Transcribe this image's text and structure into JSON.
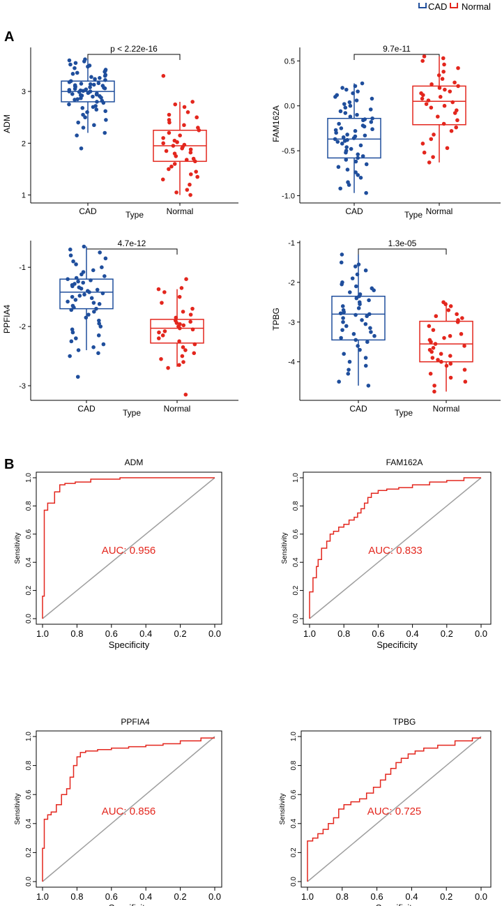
{
  "colors": {
    "cad": "#1f4e9c",
    "normal": "#e3261d",
    "diag": "#9e9e9e",
    "roc": "#e3261d"
  },
  "panel_labels": {
    "a": "A",
    "b": "B"
  },
  "legend": {
    "items": [
      "CAD",
      "Normal"
    ]
  },
  "chart_data": [
    {
      "type": "box",
      "panel": "A",
      "title": "",
      "ylabel": "ADM",
      "xlabel": "Type",
      "categories": [
        "CAD",
        "Normal"
      ],
      "ylim": [
        0.9,
        3.85
      ],
      "yticks": [
        1,
        2,
        3
      ],
      "ytick_labels": [
        "1",
        "2",
        "3"
      ],
      "significance": "p < 2.22e-16",
      "boxes": [
        {
          "name": "CAD",
          "min": 2.2,
          "q1": 2.8,
          "median": 3.0,
          "q3": 3.2,
          "max": 3.62
        },
        {
          "name": "Normal",
          "min": 1.0,
          "q1": 1.65,
          "median": 1.95,
          "q3": 2.25,
          "max": 2.8
        }
      ],
      "points": [
        [
          1.9,
          2.15,
          2.2,
          2.3,
          2.35,
          2.4,
          2.45,
          2.5,
          2.55,
          2.6,
          2.62,
          2.65,
          2.68,
          2.7,
          2.72,
          2.75,
          2.78,
          2.8,
          2.82,
          2.84,
          2.85,
          2.87,
          2.88,
          2.9,
          2.91,
          2.92,
          2.93,
          2.94,
          2.95,
          2.96,
          2.97,
          2.98,
          2.99,
          3.0,
          3.0,
          3.01,
          3.02,
          3.03,
          3.04,
          3.05,
          3.06,
          3.07,
          3.08,
          3.09,
          3.1,
          3.11,
          3.12,
          3.13,
          3.14,
          3.15,
          3.16,
          3.18,
          3.2,
          3.22,
          3.24,
          3.26,
          3.28,
          3.3,
          3.32,
          3.34,
          3.36,
          3.38,
          3.4,
          3.42,
          3.45,
          3.48,
          3.5,
          3.52,
          3.55,
          3.58,
          3.6,
          3.62
        ],
        [
          1.0,
          1.05,
          1.1,
          1.2,
          1.3,
          1.35,
          1.4,
          1.45,
          1.5,
          1.55,
          1.6,
          1.65,
          1.68,
          1.7,
          1.75,
          1.8,
          1.82,
          1.85,
          1.88,
          1.9,
          1.93,
          1.95,
          1.97,
          2.0,
          2.02,
          2.05,
          2.1,
          2.15,
          2.2,
          2.25,
          2.3,
          2.35,
          2.4,
          2.45,
          2.5,
          2.55,
          2.6,
          2.7,
          2.75,
          2.8,
          3.3
        ]
      ]
    },
    {
      "type": "box",
      "panel": "A",
      "title": "",
      "ylabel": "FAM162A",
      "xlabel": "Type",
      "categories": [
        "CAD",
        "Normal"
      ],
      "ylim": [
        -1.05,
        0.65
      ],
      "yticks": [
        -1.0,
        -0.5,
        0.0,
        0.5
      ],
      "ytick_labels": [
        "-1.0",
        "-0.5",
        "0.0",
        "0.5"
      ],
      "significance": "9.7e-11",
      "boxes": [
        {
          "name": "CAD",
          "min": -0.97,
          "q1": -0.58,
          "median": -0.37,
          "q3": -0.14,
          "max": 0.25
        },
        {
          "name": "Normal",
          "min": -0.63,
          "q1": -0.21,
          "median": 0.05,
          "q3": 0.22,
          "max": 0.55
        }
      ],
      "points": [
        [
          -0.97,
          -0.92,
          -0.88,
          -0.85,
          -0.8,
          -0.77,
          -0.74,
          -0.71,
          -0.68,
          -0.65,
          -0.62,
          -0.6,
          -0.58,
          -0.56,
          -0.54,
          -0.52,
          -0.5,
          -0.48,
          -0.46,
          -0.44,
          -0.42,
          -0.4,
          -0.39,
          -0.38,
          -0.37,
          -0.36,
          -0.35,
          -0.34,
          -0.33,
          -0.32,
          -0.3,
          -0.28,
          -0.27,
          -0.26,
          -0.25,
          -0.23,
          -0.22,
          -0.2,
          -0.18,
          -0.16,
          -0.15,
          -0.14,
          -0.12,
          -0.1,
          -0.08,
          -0.06,
          -0.04,
          -0.02,
          0.0,
          0.02,
          0.04,
          0.06,
          0.08,
          0.1,
          0.12,
          0.14,
          0.16,
          0.18,
          0.2,
          0.22,
          0.25
        ],
        [
          -0.63,
          -0.57,
          -0.52,
          -0.47,
          -0.42,
          -0.37,
          -0.32,
          -0.28,
          -0.24,
          -0.2,
          -0.16,
          -0.12,
          -0.08,
          -0.05,
          -0.02,
          0.0,
          0.02,
          0.04,
          0.06,
          0.08,
          0.1,
          0.12,
          0.14,
          0.16,
          0.18,
          0.2,
          0.22,
          0.24,
          0.26,
          0.3,
          0.34,
          0.38,
          0.42,
          0.46,
          0.5,
          0.53,
          0.55
        ]
      ]
    },
    {
      "type": "box",
      "panel": "A",
      "title": "",
      "ylabel": "PPFIA4",
      "xlabel": "Type",
      "categories": [
        "CAD",
        "Normal"
      ],
      "ylim": [
        -3.2,
        -0.55
      ],
      "yticks": [
        -3,
        -2,
        -1
      ],
      "ytick_labels": [
        "-3",
        "-2",
        "-1"
      ],
      "significance": "4.7e-12",
      "boxes": [
        {
          "name": "CAD",
          "min": -2.4,
          "q1": -1.7,
          "median": -1.42,
          "q3": -1.2,
          "max": -0.65
        },
        {
          "name": "Normal",
          "min": -2.68,
          "q1": -2.28,
          "median": -2.03,
          "q3": -1.88,
          "max": -1.37
        }
      ],
      "points": [
        [
          -2.85,
          -2.5,
          -2.45,
          -2.4,
          -2.35,
          -2.3,
          -2.25,
          -2.2,
          -2.15,
          -2.1,
          -2.05,
          -2.0,
          -1.95,
          -1.9,
          -1.85,
          -1.8,
          -1.75,
          -1.72,
          -1.7,
          -1.68,
          -1.65,
          -1.62,
          -1.6,
          -1.58,
          -1.55,
          -1.52,
          -1.5,
          -1.48,
          -1.46,
          -1.44,
          -1.42,
          -1.4,
          -1.38,
          -1.36,
          -1.34,
          -1.32,
          -1.3,
          -1.28,
          -1.26,
          -1.24,
          -1.22,
          -1.2,
          -1.18,
          -1.15,
          -1.12,
          -1.08,
          -1.05,
          -1.0,
          -0.95,
          -0.9,
          -0.85,
          -0.8,
          -0.75,
          -0.7,
          -0.65
        ],
        [
          -3.15,
          -2.7,
          -2.65,
          -2.6,
          -2.55,
          -2.5,
          -2.45,
          -2.4,
          -2.35,
          -2.3,
          -2.25,
          -2.2,
          -2.15,
          -2.1,
          -2.08,
          -2.05,
          -2.03,
          -2.0,
          -1.98,
          -1.96,
          -1.94,
          -1.92,
          -1.9,
          -1.85,
          -1.8,
          -1.75,
          -1.7,
          -1.6,
          -1.5,
          -1.42,
          -1.37,
          -1.35,
          -1.2
        ]
      ]
    },
    {
      "type": "box",
      "panel": "A",
      "title": "",
      "ylabel": "TPBG",
      "xlabel": "Type",
      "categories": [
        "CAD",
        "Normal"
      ],
      "ylim": [
        -4.9,
        -0.95
      ],
      "yticks": [
        -4,
        -3,
        -2,
        -1
      ],
      "ytick_labels": [
        "-4",
        "-3",
        "-2",
        "-1"
      ],
      "significance": "1.3e-05",
      "boxes": [
        {
          "name": "CAD",
          "min": -4.6,
          "q1": -3.45,
          "median": -2.8,
          "q3": -2.35,
          "max": -1.3
        },
        {
          "name": "Normal",
          "min": -4.75,
          "q1": -4.0,
          "median": -3.55,
          "q3": -2.98,
          "max": -2.5
        }
      ],
      "points": [
        [
          -4.6,
          -4.5,
          -4.3,
          -4.2,
          -4.1,
          -4.0,
          -3.9,
          -3.8,
          -3.7,
          -3.6,
          -3.5,
          -3.45,
          -3.4,
          -3.35,
          -3.3,
          -3.25,
          -3.2,
          -3.15,
          -3.1,
          -3.05,
          -3.0,
          -2.95,
          -2.9,
          -2.85,
          -2.82,
          -2.8,
          -2.78,
          -2.75,
          -2.7,
          -2.65,
          -2.6,
          -2.55,
          -2.5,
          -2.45,
          -2.4,
          -2.35,
          -2.3,
          -2.25,
          -2.2,
          -2.15,
          -2.1,
          -2.05,
          -2.0,
          -1.9,
          -1.8,
          -1.7,
          -1.6,
          -1.55,
          -1.5,
          -1.3
        ],
        [
          -4.75,
          -4.6,
          -4.5,
          -4.4,
          -4.3,
          -4.2,
          -4.1,
          -4.05,
          -4.0,
          -3.95,
          -3.9,
          -3.85,
          -3.8,
          -3.75,
          -3.7,
          -3.65,
          -3.6,
          -3.55,
          -3.5,
          -3.45,
          -3.4,
          -3.35,
          -3.3,
          -3.2,
          -3.1,
          -3.0,
          -2.95,
          -2.9,
          -2.85,
          -2.8,
          -2.7,
          -2.6,
          -2.55,
          -2.5
        ]
      ]
    },
    {
      "type": "line",
      "panel": "B",
      "title": "ADM",
      "xlabel": "Specificity",
      "ylabel": "Sensitivity",
      "xlim": [
        1.0,
        0.0
      ],
      "ylim": [
        0.0,
        1.0
      ],
      "xticks": [
        1.0,
        0.8,
        0.6,
        0.4,
        0.2,
        0.0
      ],
      "xtick_labels": [
        "1.0",
        "0.8",
        "0.6",
        "0.4",
        "0.2",
        "0.0"
      ],
      "yticks": [
        0.0,
        0.2,
        0.4,
        0.6,
        0.8,
        1.0
      ],
      "ytick_labels": [
        "0.0",
        "0.2",
        "0.4",
        "0.6",
        "0.8",
        "1.0"
      ],
      "annotation": "AUC: 0.956",
      "specificity": [
        1.0,
        1.0,
        0.99,
        0.99,
        0.97,
        0.97,
        0.93,
        0.93,
        0.9,
        0.9,
        0.87,
        0.87,
        0.81,
        0.81,
        0.72,
        0.72,
        0.55,
        0.55,
        0.3,
        0.3,
        0.0
      ],
      "sensitivity": [
        0.0,
        0.16,
        0.16,
        0.77,
        0.77,
        0.82,
        0.82,
        0.9,
        0.9,
        0.95,
        0.95,
        0.96,
        0.96,
        0.97,
        0.97,
        0.99,
        0.99,
        1.0,
        1.0,
        1.0,
        1.0
      ]
    },
    {
      "type": "line",
      "panel": "B",
      "title": "FAM162A",
      "xlabel": "Specificity",
      "ylabel": "Sensitivity",
      "xlim": [
        1.0,
        0.0
      ],
      "ylim": [
        0.0,
        1.0
      ],
      "xticks": [
        1.0,
        0.8,
        0.6,
        0.4,
        0.2,
        0.0
      ],
      "xtick_labels": [
        "1.0",
        "0.8",
        "0.6",
        "0.4",
        "0.2",
        "0.0"
      ],
      "yticks": [
        0.0,
        0.2,
        0.4,
        0.6,
        0.8,
        1.0
      ],
      "ytick_labels": [
        "0.0",
        "0.2",
        "0.4",
        "0.6",
        "0.8",
        "1.0"
      ],
      "annotation": "AUC: 0.833",
      "specificity": [
        1.0,
        1.0,
        0.98,
        0.98,
        0.96,
        0.96,
        0.95,
        0.95,
        0.93,
        0.93,
        0.9,
        0.9,
        0.88,
        0.88,
        0.86,
        0.86,
        0.83,
        0.83,
        0.8,
        0.8,
        0.77,
        0.77,
        0.74,
        0.74,
        0.72,
        0.72,
        0.7,
        0.7,
        0.68,
        0.68,
        0.66,
        0.66,
        0.64,
        0.64,
        0.6,
        0.6,
        0.55,
        0.55,
        0.48,
        0.48,
        0.4,
        0.4,
        0.3,
        0.3,
        0.2,
        0.2,
        0.1,
        0.1,
        0.0
      ],
      "sensitivity": [
        0.0,
        0.19,
        0.19,
        0.29,
        0.29,
        0.37,
        0.37,
        0.42,
        0.42,
        0.5,
        0.5,
        0.55,
        0.55,
        0.6,
        0.6,
        0.62,
        0.62,
        0.65,
        0.65,
        0.67,
        0.67,
        0.7,
        0.7,
        0.72,
        0.72,
        0.75,
        0.75,
        0.78,
        0.78,
        0.82,
        0.82,
        0.86,
        0.86,
        0.89,
        0.89,
        0.91,
        0.91,
        0.92,
        0.92,
        0.93,
        0.93,
        0.95,
        0.95,
        0.97,
        0.97,
        0.98,
        0.98,
        1.0,
        1.0
      ]
    },
    {
      "type": "line",
      "panel": "B",
      "title": "PPFIA4",
      "xlabel": "Specificity",
      "ylabel": "Sensitivity",
      "xlim": [
        1.0,
        0.0
      ],
      "ylim": [
        0.0,
        1.0
      ],
      "xticks": [
        1.0,
        0.8,
        0.6,
        0.4,
        0.2,
        0.0
      ],
      "xtick_labels": [
        "1.0",
        "0.8",
        "0.6",
        "0.4",
        "0.2",
        "0.0"
      ],
      "yticks": [
        0.0,
        0.2,
        0.4,
        0.6,
        0.8,
        1.0
      ],
      "ytick_labels": [
        "0.0",
        "0.2",
        "0.4",
        "0.6",
        "0.8",
        "1.0"
      ],
      "annotation": "AUC: 0.856",
      "specificity": [
        1.0,
        1.0,
        0.99,
        0.99,
        0.97,
        0.97,
        0.95,
        0.95,
        0.92,
        0.92,
        0.89,
        0.89,
        0.86,
        0.86,
        0.84,
        0.84,
        0.82,
        0.82,
        0.8,
        0.8,
        0.78,
        0.78,
        0.75,
        0.75,
        0.68,
        0.68,
        0.6,
        0.6,
        0.5,
        0.5,
        0.4,
        0.4,
        0.3,
        0.3,
        0.2,
        0.2,
        0.08,
        0.08,
        0.0
      ],
      "sensitivity": [
        0.0,
        0.23,
        0.23,
        0.43,
        0.43,
        0.46,
        0.46,
        0.48,
        0.48,
        0.53,
        0.53,
        0.6,
        0.6,
        0.64,
        0.64,
        0.72,
        0.72,
        0.8,
        0.8,
        0.86,
        0.86,
        0.89,
        0.89,
        0.9,
        0.9,
        0.91,
        0.91,
        0.92,
        0.92,
        0.93,
        0.93,
        0.94,
        0.94,
        0.95,
        0.95,
        0.97,
        0.97,
        0.99,
        0.99
      ]
    },
    {
      "type": "line",
      "panel": "B",
      "title": "TPBG",
      "xlabel": "Specificity",
      "ylabel": "Sensitivity",
      "xlim": [
        1.0,
        0.0
      ],
      "ylim": [
        0.0,
        1.0
      ],
      "xticks": [
        1.0,
        0.8,
        0.6,
        0.4,
        0.2,
        0.0
      ],
      "xtick_labels": [
        "1.0",
        "0.8",
        "0.6",
        "0.4",
        "0.2",
        "0.0"
      ],
      "yticks": [
        0.0,
        0.2,
        0.4,
        0.6,
        0.8,
        1.0
      ],
      "ytick_labels": [
        "0.0",
        "0.2",
        "0.4",
        "0.6",
        "0.8",
        "1.0"
      ],
      "annotation": "AUC: 0.725",
      "specificity": [
        1.0,
        1.0,
        0.97,
        0.97,
        0.94,
        0.94,
        0.91,
        0.91,
        0.88,
        0.88,
        0.85,
        0.85,
        0.82,
        0.82,
        0.79,
        0.79,
        0.75,
        0.75,
        0.7,
        0.7,
        0.66,
        0.66,
        0.62,
        0.62,
        0.58,
        0.58,
        0.55,
        0.55,
        0.52,
        0.52,
        0.49,
        0.49,
        0.46,
        0.46,
        0.42,
        0.42,
        0.38,
        0.38,
        0.33,
        0.33,
        0.25,
        0.25,
        0.15,
        0.15,
        0.05,
        0.05,
        0.0
      ],
      "sensitivity": [
        0.0,
        0.28,
        0.28,
        0.3,
        0.3,
        0.33,
        0.33,
        0.36,
        0.36,
        0.4,
        0.4,
        0.44,
        0.44,
        0.5,
        0.5,
        0.53,
        0.53,
        0.55,
        0.55,
        0.57,
        0.57,
        0.61,
        0.61,
        0.65,
        0.65,
        0.7,
        0.7,
        0.74,
        0.74,
        0.78,
        0.78,
        0.82,
        0.82,
        0.85,
        0.85,
        0.88,
        0.88,
        0.9,
        0.9,
        0.92,
        0.92,
        0.94,
        0.94,
        0.97,
        0.97,
        0.99,
        0.99
      ]
    }
  ]
}
